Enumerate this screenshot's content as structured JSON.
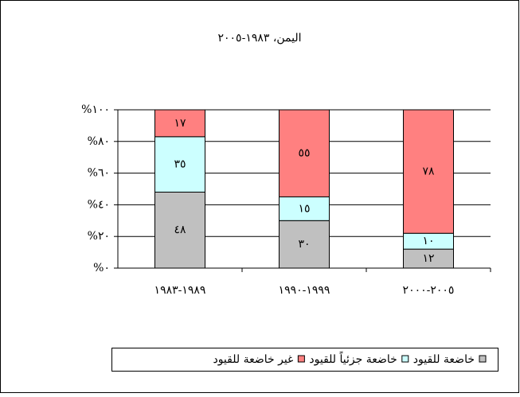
{
  "chart_data": {
    "type": "stacked_bar",
    "title": "اليمن، ١٩٨٣-٢٠٠٥",
    "categories": [
      "١٩٨٩-١٩٨٣",
      "١٩٩٩-١٩٩٠",
      "٢٠٠٥-٢٠٠٠"
    ],
    "series": [
      {
        "name": "خاضعة للقيود",
        "color": "#c0c0c0",
        "values": [
          48,
          30,
          12
        ],
        "value_labels": [
          "٤٨",
          "٣٠",
          "١٢"
        ]
      },
      {
        "name": "خاضعة جزئياً للقيود",
        "color": "#ccffff",
        "values": [
          35,
          15,
          10
        ],
        "value_labels": [
          "٣٥",
          "١٥",
          "١٠"
        ]
      },
      {
        "name": "غير خاضعة للقيود",
        "color": "#ff8080",
        "values": [
          17,
          55,
          78
        ],
        "value_labels": [
          "١٧",
          "٥٥",
          "٧٨"
        ]
      }
    ],
    "ylim": [
      0,
      100
    ],
    "yticks": [
      {
        "value": 0,
        "label": "%٠"
      },
      {
        "value": 20,
        "label": "%٢٠"
      },
      {
        "value": 40,
        "label": "%٤٠"
      },
      {
        "value": 60,
        "label": "%٦٠"
      },
      {
        "value": 80,
        "label": "%٨٠"
      },
      {
        "value": 100,
        "label": "%١٠٠"
      }
    ],
    "grid": true,
    "legend": "bottom"
  }
}
